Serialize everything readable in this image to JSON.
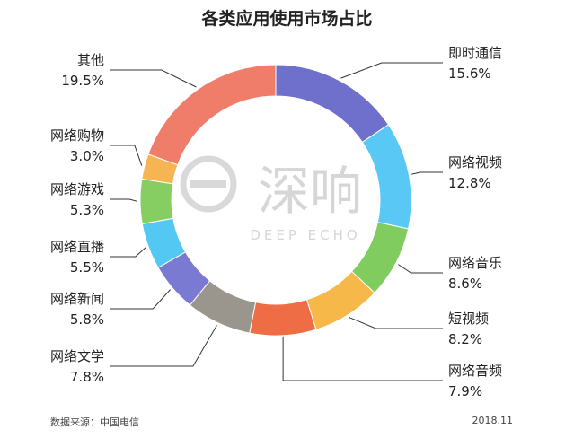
{
  "chart_data": {
    "type": "pie",
    "title": "各类应用使用市场占比",
    "categories": [
      "即时通信",
      "网络视频",
      "网络音乐",
      "短视频",
      "网络音频",
      "网络文学",
      "网络新闻",
      "网络直播",
      "网络游戏",
      "网络购物",
      "其他"
    ],
    "values": [
      15.6,
      12.8,
      8.6,
      8.2,
      7.9,
      7.8,
      5.8,
      5.5,
      5.3,
      3.0,
      19.5
    ],
    "value_labels": [
      "15.6%",
      "12.8%",
      "8.6%",
      "8.2%",
      "7.9%",
      "7.8%",
      "5.8%",
      "5.5%",
      "5.3%",
      "3.0%",
      "19.5%"
    ],
    "colors": [
      "#6f6fcc",
      "#5ac8f5",
      "#80cc5e",
      "#f7b84a",
      "#ee6d45",
      "#9b968d",
      "#7a7ad2",
      "#53c8f2",
      "#86cd62",
      "#f5b553",
      "#ef7d6a"
    ],
    "donut": true,
    "legend": "none"
  },
  "watermark": {
    "text": "深响",
    "subtext": "DEEP ECHO"
  },
  "footer": {
    "source": "数据来源：中国电信",
    "date": "2018.11"
  }
}
